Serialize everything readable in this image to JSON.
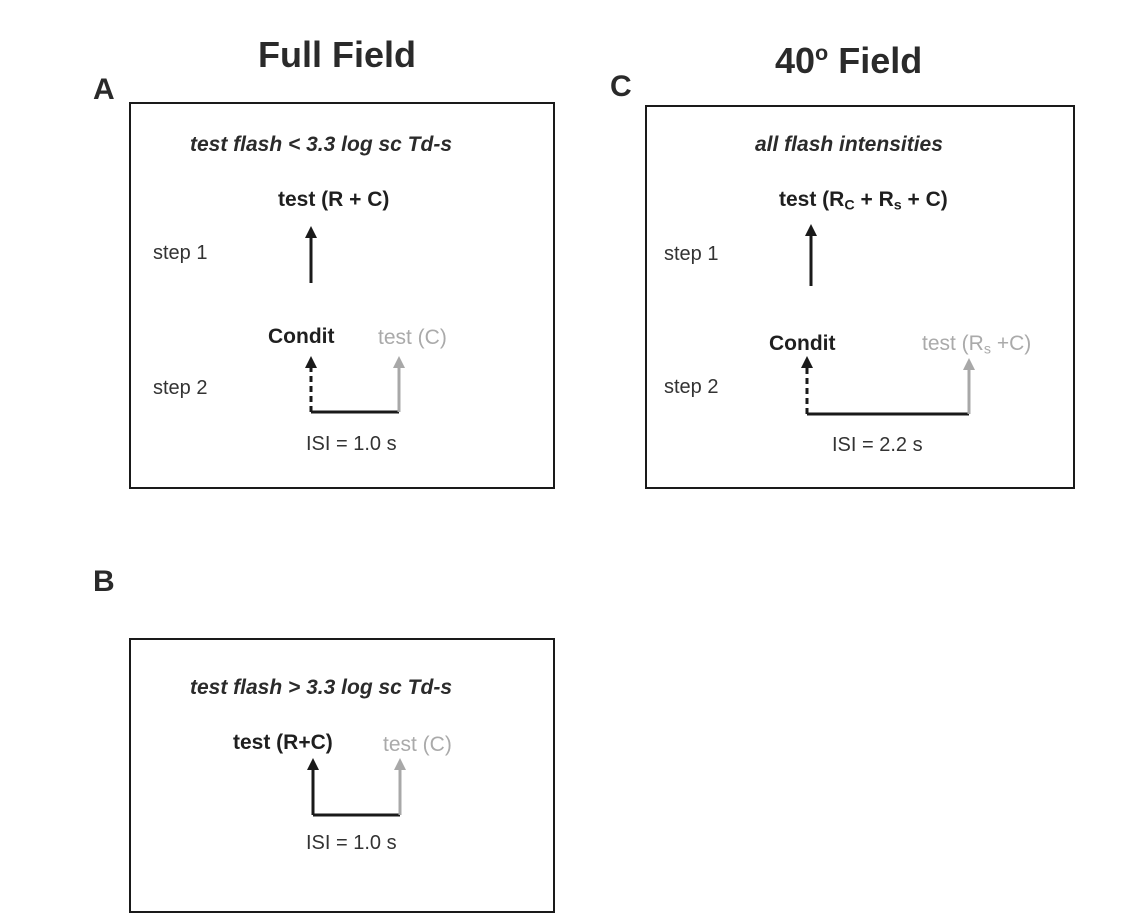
{
  "column_titles": {
    "full_field": "Full Field",
    "field_40_prefix": "40",
    "field_40_sup": "o",
    "field_40_suffix": " Field"
  },
  "panels": {
    "A": {
      "letter": "A",
      "condition": "test flash < 3.3 log sc Td-s",
      "test_response": "test (R + C)",
      "step1": "step 1",
      "step2": "step 2",
      "conditioning": "Condit",
      "gray_test": "test (C)",
      "isi": "ISI = 1.0 s"
    },
    "B": {
      "letter": "B",
      "condition": "test flash > 3.3 log sc Td-s",
      "test_response": "test (R+C)",
      "gray_test": "test (C)",
      "isi": "ISI = 1.0 s"
    },
    "C": {
      "letter": "C",
      "condition": "all flash intensities",
      "test_prefix": "test (R",
      "test_sub1": "C",
      "test_mid": " + R",
      "test_sub2": "s",
      "test_suffix": " + C)",
      "step1": "step 1",
      "step2": "step 2",
      "conditioning": "Condit",
      "gray_prefix": "test (R",
      "gray_sub": "s",
      "gray_suffix": " +C)",
      "isi": "ISI = 2.2 s"
    }
  },
  "colors": {
    "line": "#1a1a1a",
    "gray": "#a8a8a8"
  }
}
